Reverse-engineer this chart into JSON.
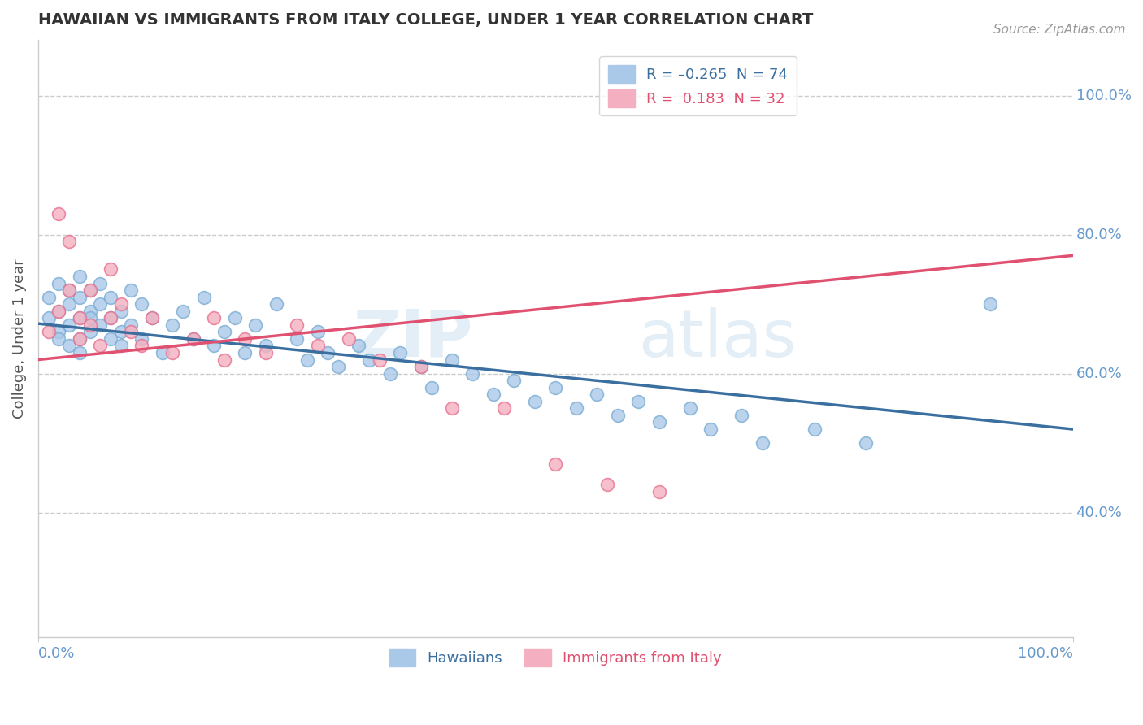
{
  "title": "HAWAIIAN VS IMMIGRANTS FROM ITALY COLLEGE, UNDER 1 YEAR CORRELATION CHART",
  "source": "Source: ZipAtlas.com",
  "ylabel": "College, Under 1 year",
  "xlim": [
    0.0,
    1.0
  ],
  "ylim": [
    0.22,
    1.08
  ],
  "xtick_labels": [
    "0.0%",
    "100.0%"
  ],
  "xtick_positions": [
    0.0,
    1.0
  ],
  "ytick_labels": [
    "40.0%",
    "60.0%",
    "80.0%",
    "100.0%"
  ],
  "ytick_positions": [
    0.4,
    0.6,
    0.8,
    1.0
  ],
  "grid_color": "#cccccc",
  "background_color": "#ffffff",
  "title_color": "#333333",
  "axis_label_color": "#555555",
  "tick_label_color": "#6699cc",
  "watermark": "ZIPatlas",
  "hawaiians": {
    "name": "Hawaiians",
    "color": "#aac8e8",
    "edge_color": "#7aadd4",
    "line_color": "#3a6fa0",
    "line_y0": 0.672,
    "line_y1": 0.52,
    "x": [
      0.01,
      0.01,
      0.02,
      0.02,
      0.02,
      0.02,
      0.03,
      0.03,
      0.03,
      0.03,
      0.04,
      0.04,
      0.04,
      0.04,
      0.04,
      0.05,
      0.05,
      0.05,
      0.05,
      0.06,
      0.06,
      0.06,
      0.07,
      0.07,
      0.07,
      0.08,
      0.08,
      0.08,
      0.09,
      0.09,
      0.1,
      0.1,
      0.11,
      0.12,
      0.13,
      0.14,
      0.15,
      0.16,
      0.17,
      0.18,
      0.19,
      0.2,
      0.21,
      0.22,
      0.23,
      0.25,
      0.26,
      0.27,
      0.28,
      0.29,
      0.31,
      0.32,
      0.34,
      0.35,
      0.37,
      0.38,
      0.4,
      0.42,
      0.44,
      0.46,
      0.48,
      0.5,
      0.52,
      0.54,
      0.56,
      0.58,
      0.6,
      0.63,
      0.65,
      0.68,
      0.7,
      0.75,
      0.8,
      0.92
    ],
    "y": [
      0.68,
      0.71,
      0.66,
      0.69,
      0.73,
      0.65,
      0.67,
      0.72,
      0.64,
      0.7,
      0.68,
      0.65,
      0.71,
      0.74,
      0.63,
      0.69,
      0.66,
      0.72,
      0.68,
      0.7,
      0.67,
      0.73,
      0.65,
      0.68,
      0.71,
      0.66,
      0.69,
      0.64,
      0.72,
      0.67,
      0.7,
      0.65,
      0.68,
      0.63,
      0.67,
      0.69,
      0.65,
      0.71,
      0.64,
      0.66,
      0.68,
      0.63,
      0.67,
      0.64,
      0.7,
      0.65,
      0.62,
      0.66,
      0.63,
      0.61,
      0.64,
      0.62,
      0.6,
      0.63,
      0.61,
      0.58,
      0.62,
      0.6,
      0.57,
      0.59,
      0.56,
      0.58,
      0.55,
      0.57,
      0.54,
      0.56,
      0.53,
      0.55,
      0.52,
      0.54,
      0.5,
      0.52,
      0.5,
      0.7
    ]
  },
  "italy": {
    "name": "Immigrants from Italy",
    "color": "#f4b0c0",
    "edge_color": "#e87090",
    "line_color": "#e05070",
    "line_y0": 0.62,
    "line_y1": 0.77,
    "x": [
      0.01,
      0.02,
      0.02,
      0.03,
      0.03,
      0.04,
      0.04,
      0.05,
      0.05,
      0.06,
      0.07,
      0.07,
      0.08,
      0.09,
      0.1,
      0.11,
      0.13,
      0.15,
      0.17,
      0.18,
      0.2,
      0.22,
      0.25,
      0.27,
      0.3,
      0.33,
      0.37,
      0.4,
      0.45,
      0.5,
      0.55,
      0.6
    ],
    "y": [
      0.66,
      0.69,
      0.83,
      0.79,
      0.72,
      0.68,
      0.65,
      0.72,
      0.67,
      0.64,
      0.68,
      0.75,
      0.7,
      0.66,
      0.64,
      0.68,
      0.63,
      0.65,
      0.68,
      0.62,
      0.65,
      0.63,
      0.67,
      0.64,
      0.65,
      0.62,
      0.61,
      0.55,
      0.55,
      0.47,
      0.44,
      0.43
    ]
  },
  "legend_entries": [
    {
      "label": "R = –0.265  N = 74",
      "color": "#aac8e8",
      "text_color": "#3a6fa0"
    },
    {
      "label": "R =  0.183  N = 32",
      "color": "#f4b0c0",
      "text_color": "#e05070"
    }
  ],
  "bottom_legend": [
    {
      "label": "Hawaiians",
      "color": "#aac8e8",
      "text_color": "#3a6fa0"
    },
    {
      "label": "Immigrants from Italy",
      "color": "#f4b0c0",
      "text_color": "#e05070"
    }
  ]
}
